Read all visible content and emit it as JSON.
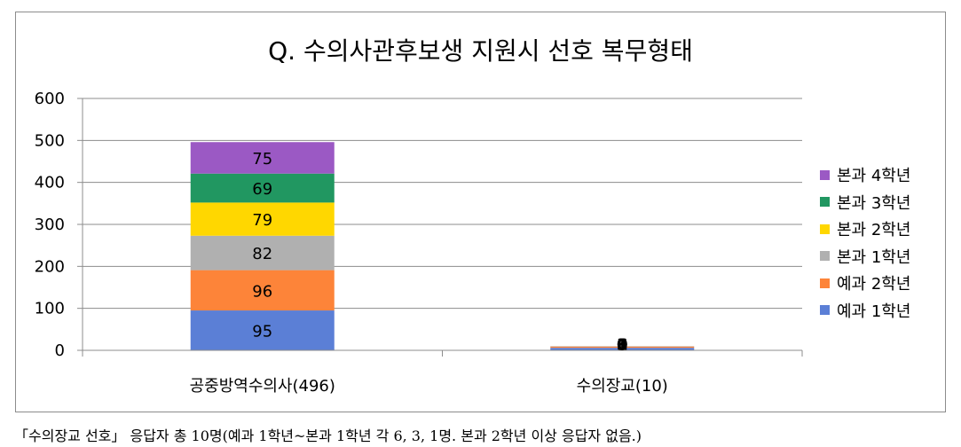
{
  "chart_data": {
    "type": "bar",
    "stacked": true,
    "title": "Q. 수의사관후보생 지원시 선호 복무형태",
    "categories": [
      "공중방역수의사(496)",
      "수의장교(10)"
    ],
    "series": [
      {
        "name": "예과 1학년",
        "color": "#5b7fd6",
        "values": [
          95,
          6
        ]
      },
      {
        "name": "예과 2학년",
        "color": "#fd8439",
        "values": [
          96,
          3
        ]
      },
      {
        "name": "본과 1학년",
        "color": "#b0b0b0",
        "values": [
          82,
          1
        ]
      },
      {
        "name": "본과 2학년",
        "color": "#ffd700",
        "values": [
          79,
          0
        ]
      },
      {
        "name": "본과 3학년",
        "color": "#219761",
        "values": [
          69,
          0
        ]
      },
      {
        "name": "본과 4학년",
        "color": "#9b59c4",
        "values": [
          75,
          0
        ]
      }
    ],
    "ylim": [
      0,
      600
    ],
    "yticks": [
      0,
      100,
      200,
      300,
      400,
      500,
      600
    ],
    "grid": true,
    "legend_position": "right"
  },
  "footnote": "「수의장교 선호」 응답자 총 10명(예과 1학년~본과 1학년 각 6, 3, 1명. 본과 2학년 이상 응답자 없음.)"
}
